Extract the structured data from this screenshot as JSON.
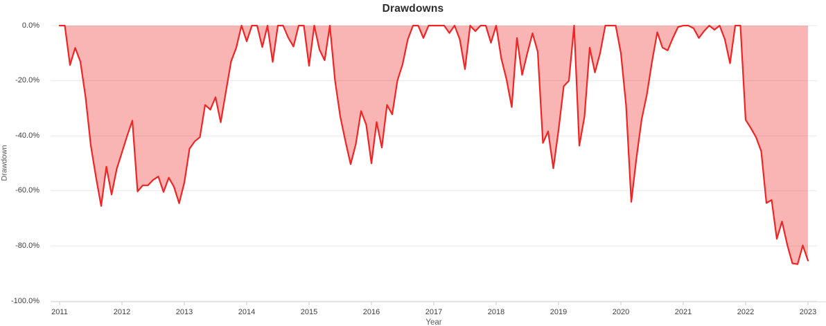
{
  "title": "Drawdowns",
  "x_axis": {
    "label": "Year",
    "ticks": [
      "2011",
      "2012",
      "2013",
      "2014",
      "2015",
      "2016",
      "2017",
      "2018",
      "2019",
      "2020",
      "2021",
      "2022",
      "2023"
    ]
  },
  "y_axis": {
    "label": "Drawdown",
    "ticks": [
      "0.0%",
      "-20.0%",
      "-40.0%",
      "-60.0%",
      "-80.0%",
      "-100.0%"
    ],
    "tick_values": [
      0,
      -20,
      -40,
      -60,
      -80,
      -100
    ]
  },
  "colors": {
    "line": "#ee2524",
    "fill": "rgba(238,37,36,0.34)",
    "grid": "#e8e8e8",
    "axis": "#d8d8d8",
    "tick": "#cccccc",
    "title_text": "#2c2c2c",
    "tick_text": "#3d3d3d",
    "axis_label_text": "#5a5a5a"
  },
  "chart_data": {
    "type": "area",
    "title": "Drawdowns",
    "xlabel": "Year",
    "ylabel": "Drawdown",
    "series_name": "Drawdown %",
    "frequency": "monthly",
    "x_start": "2011-01",
    "x_end": "2023-01",
    "ylim": [
      -100,
      0
    ],
    "xtick_years": [
      2011,
      2012,
      2013,
      2014,
      2015,
      2016,
      2017,
      2018,
      2019,
      2020,
      2021,
      2022,
      2023
    ],
    "grid": "horizontal-only",
    "legend": "none",
    "values": [
      0,
      0,
      -14.3,
      -8.1,
      -13.1,
      -26,
      -43.5,
      -55,
      -65.5,
      -51.2,
      -61.3,
      -52,
      -46,
      -40,
      -34.5,
      -60.2,
      -58,
      -58,
      -56,
      -54.8,
      -60.4,
      -55.2,
      -58.5,
      -64.5,
      -57,
      -44.7,
      -42,
      -40.5,
      -28.8,
      -30.5,
      -26,
      -35.1,
      -24,
      -13,
      -8,
      0,
      -5.7,
      0,
      0,
      -7.8,
      0,
      -13.2,
      0,
      0,
      -4.4,
      -7.6,
      0,
      0,
      -14.6,
      0,
      -8.7,
      -12.6,
      0,
      -20,
      -33,
      -42,
      -50.3,
      -43,
      -31,
      -36,
      -50,
      -35,
      -44.3,
      -28.8,
      -32.2,
      -20,
      -14,
      -5,
      0,
      0,
      -4.5,
      0,
      0,
      0,
      0,
      -2.7,
      0,
      -5,
      -15.8,
      0,
      -2,
      0,
      0,
      -6.2,
      0,
      -12,
      -19.6,
      -29.6,
      -4.5,
      -17.9,
      -10,
      -2.8,
      -9.5,
      -42.6,
      -38.4,
      -51.8,
      -38,
      -22,
      -20,
      0,
      -43.6,
      -33,
      -8,
      -17,
      -10,
      0,
      0,
      0,
      -10,
      -29,
      -64,
      -48,
      -34,
      -25,
      -13,
      -2.4,
      -8,
      -9,
      -4.5,
      -0.5,
      0,
      0,
      -1,
      -4.5,
      -2,
      0,
      -1.5,
      0,
      -5,
      -13.7,
      0,
      0,
      -34.2,
      -37.2,
      -40.5,
      -45.6,
      -64.4,
      -63.3,
      -77.4,
      -71.1,
      -79.5,
      -86.3,
      -86.6,
      -79.8,
      -85.3
    ]
  }
}
